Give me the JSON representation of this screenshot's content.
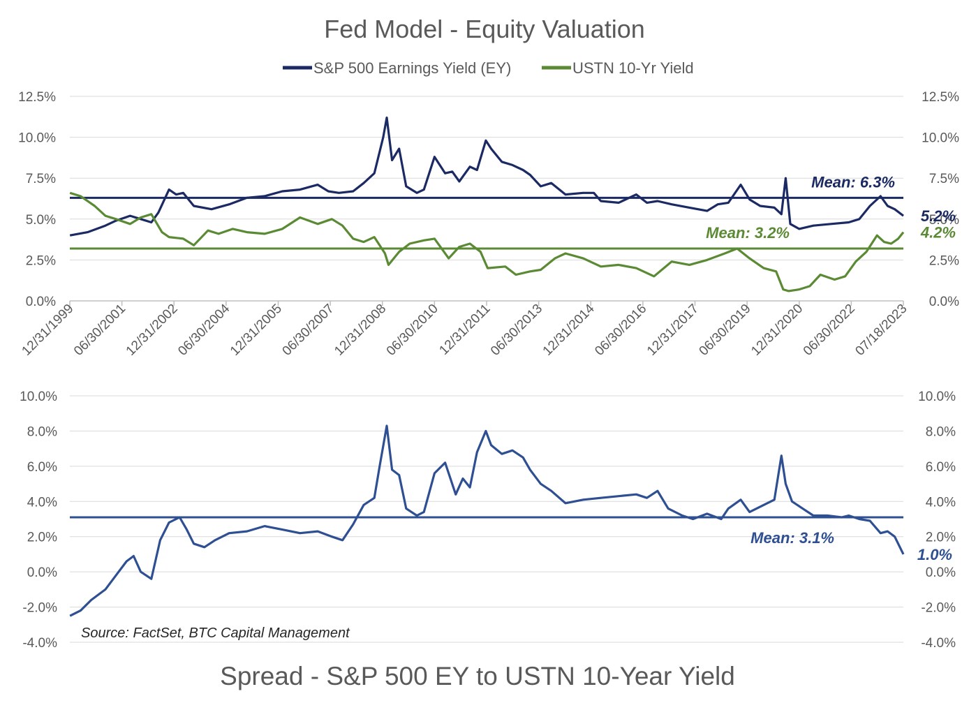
{
  "top_title": "Fed Model - Equity Valuation",
  "bottom_title": "Spread - S&P 500 EY to USTN 10-Year Yield",
  "source": "Source: FactSet, BTC Capital Management",
  "colors": {
    "ey": "#1b2a63",
    "ust": "#5b8a34",
    "spread": "#2e4f92",
    "grid": "#d9d9d9",
    "axis_text": "#595959",
    "title_text": "#595959"
  },
  "chart_data": [
    {
      "type": "line",
      "title": "Fed Model - Equity Valuation",
      "y_ticks": [
        "0.0%",
        "2.5%",
        "5.0%",
        "7.5%",
        "10.0%",
        "12.5%"
      ],
      "ylim": [
        0,
        12.5
      ],
      "x_ticks": [
        "12/31/1999",
        "06/30/2001",
        "12/31/2002",
        "06/30/2004",
        "12/31/2005",
        "06/30/2007",
        "12/31/2008",
        "06/30/2010",
        "12/31/2011",
        "06/30/2013",
        "12/31/2014",
        "06/30/2016",
        "12/31/2017",
        "06/30/2019",
        "12/31/2020",
        "06/30/2022",
        "07/18/2023"
      ],
      "x_range": [
        1999.997,
        2023.545
      ],
      "legend": "top",
      "grid": true,
      "series": [
        {
          "name": "S&P 500 Earnings Yield (EY)",
          "x": [
            2000.0,
            2000.5,
            2001.0,
            2001.3,
            2001.7,
            2002.0,
            2002.3,
            2002.5,
            2002.8,
            2003.0,
            2003.2,
            2003.5,
            2004.0,
            2004.5,
            2005.0,
            2005.5,
            2006.0,
            2006.5,
            2007.0,
            2007.3,
            2007.6,
            2008.0,
            2008.3,
            2008.6,
            2008.85,
            2008.95,
            2009.1,
            2009.3,
            2009.5,
            2009.8,
            2010.0,
            2010.3,
            2010.6,
            2010.8,
            2011.0,
            2011.3,
            2011.5,
            2011.75,
            2011.9,
            2012.2,
            2012.5,
            2012.8,
            2013.0,
            2013.3,
            2013.6,
            2014.0,
            2014.5,
            2014.8,
            2015.0,
            2015.5,
            2016.0,
            2016.3,
            2016.6,
            2017.0,
            2017.5,
            2018.0,
            2018.3,
            2018.6,
            2018.95,
            2019.2,
            2019.5,
            2019.9,
            2020.1,
            2020.22,
            2020.35,
            2020.6,
            2021.0,
            2021.5,
            2022.0,
            2022.3,
            2022.6,
            2022.9,
            2023.1,
            2023.3,
            2023.545
          ],
          "values": [
            4.0,
            4.2,
            4.6,
            4.9,
            5.2,
            5.0,
            4.8,
            5.4,
            6.8,
            6.5,
            6.6,
            5.8,
            5.6,
            5.9,
            6.3,
            6.4,
            6.7,
            6.8,
            7.1,
            6.7,
            6.6,
            6.7,
            7.2,
            7.8,
            10.0,
            11.2,
            8.6,
            9.3,
            7.0,
            6.6,
            6.8,
            8.8,
            7.8,
            7.9,
            7.3,
            8.2,
            8.0,
            9.8,
            9.3,
            8.5,
            8.3,
            8.0,
            7.7,
            7.0,
            7.2,
            6.5,
            6.6,
            6.6,
            6.1,
            6.0,
            6.5,
            6.0,
            6.1,
            5.9,
            5.7,
            5.5,
            5.9,
            6.0,
            7.1,
            6.2,
            5.8,
            5.7,
            5.3,
            7.5,
            4.7,
            4.4,
            4.6,
            4.7,
            4.8,
            5.0,
            5.8,
            6.4,
            5.8,
            5.6,
            5.2
          ]
        },
        {
          "name": "USTN 10-Yr Yield",
          "x": [
            2000.0,
            2000.3,
            2000.7,
            2001.0,
            2001.3,
            2001.7,
            2002.0,
            2002.3,
            2002.6,
            2002.8,
            2003.2,
            2003.5,
            2003.9,
            2004.2,
            2004.6,
            2005.0,
            2005.5,
            2006.0,
            2006.5,
            2007.0,
            2007.4,
            2007.7,
            2008.0,
            2008.3,
            2008.6,
            2008.9,
            2009.0,
            2009.3,
            2009.6,
            2010.0,
            2010.3,
            2010.7,
            2011.0,
            2011.3,
            2011.6,
            2011.8,
            2012.3,
            2012.6,
            2013.0,
            2013.3,
            2013.7,
            2014.0,
            2014.5,
            2015.0,
            2015.5,
            2016.0,
            2016.5,
            2017.0,
            2017.5,
            2018.0,
            2018.5,
            2018.85,
            2019.2,
            2019.6,
            2019.95,
            2020.15,
            2020.3,
            2020.6,
            2020.9,
            2021.2,
            2021.6,
            2021.9,
            2022.2,
            2022.5,
            2022.8,
            2023.0,
            2023.2,
            2023.4,
            2023.545
          ],
          "values": [
            6.6,
            6.4,
            5.8,
            5.2,
            5.0,
            4.7,
            5.1,
            5.3,
            4.2,
            3.9,
            3.8,
            3.4,
            4.3,
            4.1,
            4.4,
            4.2,
            4.1,
            4.4,
            5.1,
            4.7,
            5.0,
            4.6,
            3.8,
            3.6,
            3.9,
            2.9,
            2.2,
            3.0,
            3.5,
            3.7,
            3.8,
            2.6,
            3.3,
            3.5,
            3.0,
            2.0,
            2.1,
            1.6,
            1.8,
            1.9,
            2.6,
            2.9,
            2.6,
            2.1,
            2.2,
            2.0,
            1.5,
            2.4,
            2.2,
            2.5,
            2.9,
            3.2,
            2.6,
            2.0,
            1.8,
            0.7,
            0.6,
            0.7,
            0.9,
            1.6,
            1.3,
            1.5,
            2.4,
            3.0,
            4.0,
            3.6,
            3.5,
            3.8,
            4.2
          ]
        }
      ],
      "annotations": [
        {
          "text": "Mean: 6.3%",
          "series": "S&P 500 Earnings Yield (EY)",
          "y": 6.3
        },
        {
          "text": "Mean: 3.2%",
          "series": "USTN 10-Yr Yield",
          "y": 3.2
        },
        {
          "text": "5.2%",
          "series": "S&P 500 Earnings Yield (EY)",
          "y": 5.2,
          "kind": "last"
        },
        {
          "text": "4.2%",
          "series": "USTN 10-Yr Yield",
          "y": 4.2,
          "kind": "last"
        }
      ]
    },
    {
      "type": "line",
      "title": "Spread - S&P 500 EY to USTN 10-Year Yield",
      "y_ticks": [
        "-4.0%",
        "-2.0%",
        "0.0%",
        "2.0%",
        "4.0%",
        "6.0%",
        "8.0%",
        "10.0%"
      ],
      "ylim": [
        -4,
        10
      ],
      "x_range": [
        1999.997,
        2023.545
      ],
      "grid": true,
      "series": [
        {
          "name": "Spread",
          "x": [
            2000.0,
            2000.3,
            2000.6,
            2001.0,
            2001.3,
            2001.6,
            2001.8,
            2002.0,
            2002.3,
            2002.55,
            2002.8,
            2003.1,
            2003.3,
            2003.5,
            2003.8,
            2004.1,
            2004.5,
            2005.0,
            2005.5,
            2006.0,
            2006.5,
            2007.0,
            2007.4,
            2007.7,
            2008.0,
            2008.3,
            2008.6,
            2008.75,
            2008.95,
            2009.1,
            2009.3,
            2009.5,
            2009.8,
            2010.0,
            2010.3,
            2010.6,
            2010.9,
            2011.1,
            2011.3,
            2011.5,
            2011.75,
            2011.9,
            2012.2,
            2012.5,
            2012.8,
            2013.0,
            2013.3,
            2013.6,
            2014.0,
            2014.5,
            2015.0,
            2015.5,
            2016.0,
            2016.3,
            2016.6,
            2016.9,
            2017.3,
            2017.6,
            2018.0,
            2018.4,
            2018.6,
            2018.95,
            2019.2,
            2019.6,
            2019.9,
            2020.1,
            2020.22,
            2020.4,
            2020.7,
            2021.0,
            2021.4,
            2021.8,
            2022.0,
            2022.3,
            2022.6,
            2022.9,
            2023.1,
            2023.3,
            2023.545
          ],
          "values": [
            -2.5,
            -2.2,
            -1.6,
            -1.0,
            -0.2,
            0.6,
            0.9,
            0.0,
            -0.4,
            1.8,
            2.8,
            3.1,
            2.4,
            1.6,
            1.4,
            1.8,
            2.2,
            2.3,
            2.6,
            2.4,
            2.2,
            2.3,
            2.0,
            1.8,
            2.7,
            3.8,
            4.2,
            6.0,
            8.3,
            5.8,
            5.5,
            3.6,
            3.2,
            3.4,
            5.6,
            6.2,
            4.4,
            5.3,
            4.8,
            6.8,
            8.0,
            7.2,
            6.7,
            6.9,
            6.5,
            5.8,
            5.0,
            4.6,
            3.9,
            4.1,
            4.2,
            4.3,
            4.4,
            4.2,
            4.6,
            3.6,
            3.2,
            3.0,
            3.3,
            3.0,
            3.6,
            4.1,
            3.4,
            3.8,
            4.1,
            6.6,
            5.0,
            4.0,
            3.6,
            3.2,
            3.2,
            3.1,
            3.2,
            3.0,
            2.9,
            2.2,
            2.3,
            2.0,
            1.0
          ]
        }
      ],
      "annotations": [
        {
          "text": "Mean: 3.1%",
          "series": "Spread",
          "y": 3.1
        },
        {
          "text": "1.0%",
          "series": "Spread",
          "y": 1.0,
          "kind": "last"
        }
      ]
    }
  ]
}
